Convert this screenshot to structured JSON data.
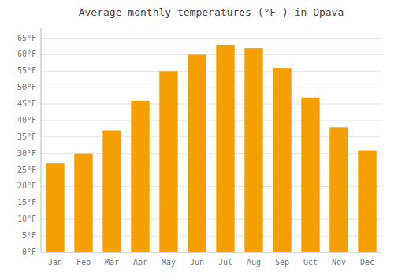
{
  "chart_data": {
    "type": "bar",
    "title": "Average monthly temperatures (°F ) in Opava",
    "categories": [
      "Jan",
      "Feb",
      "Mar",
      "Apr",
      "May",
      "Jun",
      "Jul",
      "Aug",
      "Sep",
      "Oct",
      "Nov",
      "Dec"
    ],
    "values": [
      27,
      30,
      37,
      46,
      55,
      60,
      63,
      62,
      56,
      47,
      38,
      31
    ],
    "color": "#F5A000",
    "ylim": [
      0,
      68
    ],
    "yticks": [
      {
        "value": 0,
        "label": "0°F"
      },
      {
        "value": 5,
        "label": "5°F"
      },
      {
        "value": 10,
        "label": "10°F"
      },
      {
        "value": 15,
        "label": "15°F"
      },
      {
        "value": 20,
        "label": "20°F"
      },
      {
        "value": 25,
        "label": "25°F"
      },
      {
        "value": 30,
        "label": "30°F"
      },
      {
        "value": 35,
        "label": "35°F"
      },
      {
        "value": 40,
        "label": "40°F"
      },
      {
        "value": 45,
        "label": "45°F"
      },
      {
        "value": 50,
        "label": "50°F"
      },
      {
        "value": 55,
        "label": "55°F"
      },
      {
        "value": 60,
        "label": "60°F"
      },
      {
        "value": 65,
        "label": "65°F"
      }
    ],
    "grid": true
  }
}
